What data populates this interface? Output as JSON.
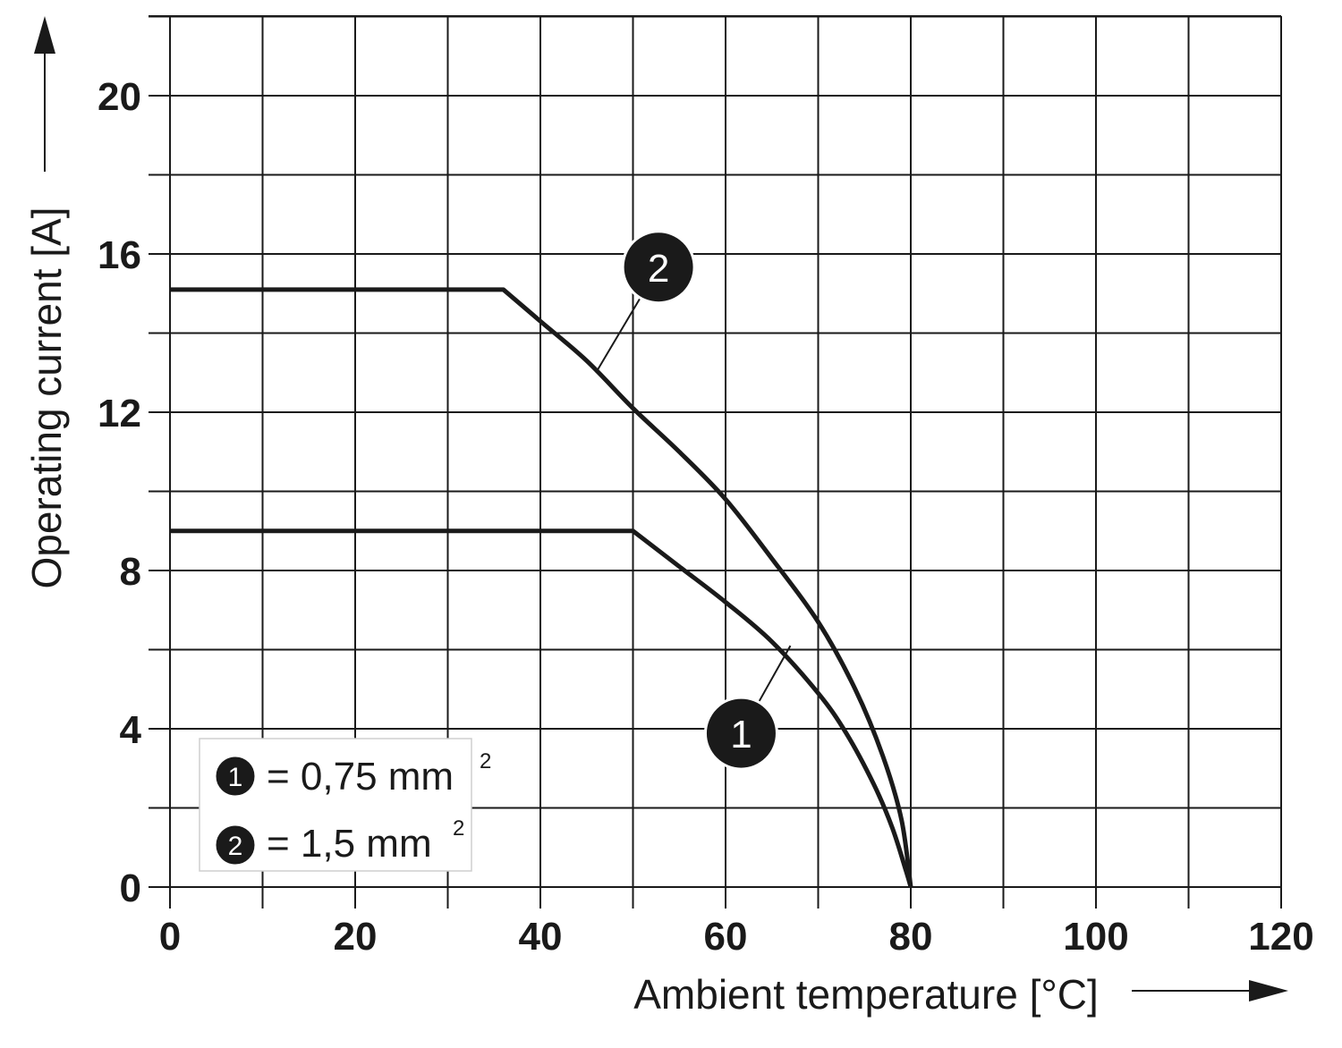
{
  "chart_data": {
    "type": "line",
    "xlabel": "Ambient temperature [°C]",
    "ylabel": "Operating current [A]",
    "xlim": [
      0,
      120
    ],
    "ylim": [
      0,
      22
    ],
    "x_ticks": [
      "0",
      "20",
      "40",
      "60",
      "80",
      "100",
      "120"
    ],
    "x_tick_values": [
      0,
      20,
      40,
      60,
      80,
      100,
      120
    ],
    "y_ticks": [
      "0",
      "4",
      "8",
      "12",
      "16",
      "20"
    ],
    "y_tick_values": [
      0,
      4,
      8,
      12,
      16,
      20
    ],
    "grid": true,
    "grid_step": {
      "x": 10,
      "y": 2
    },
    "series": [
      {
        "id": "1",
        "points": [
          [
            0,
            9.0
          ],
          [
            50,
            9.0
          ],
          [
            55,
            8.1
          ],
          [
            60,
            7.2
          ],
          [
            65,
            6.2
          ],
          [
            70,
            4.9
          ],
          [
            73,
            3.9
          ],
          [
            76,
            2.6
          ],
          [
            78,
            1.5
          ],
          [
            79.5,
            0.4
          ],
          [
            80,
            0
          ]
        ]
      },
      {
        "id": "2",
        "points": [
          [
            0,
            15.1
          ],
          [
            36,
            15.1
          ],
          [
            40,
            14.3
          ],
          [
            45,
            13.3
          ],
          [
            50,
            12.1
          ],
          [
            55,
            11.0
          ],
          [
            60,
            9.8
          ],
          [
            65,
            8.3
          ],
          [
            70,
            6.7
          ],
          [
            74,
            5.0
          ],
          [
            77,
            3.3
          ],
          [
            79,
            1.7
          ],
          [
            80,
            0
          ]
        ]
      }
    ],
    "annotations": [
      {
        "label": "1",
        "series": "1",
        "x": 67,
        "y": 6.1
      },
      {
        "label": "2",
        "series": "2",
        "x": 46,
        "y": 13.0
      }
    ],
    "legend": {
      "placement": "bottom-left",
      "entries": [
        {
          "marker": "1",
          "text": "= 0,75 mm",
          "sup": "2"
        },
        {
          "marker": "2",
          "text": "= 1,5 mm",
          "sup": "2"
        }
      ]
    }
  }
}
